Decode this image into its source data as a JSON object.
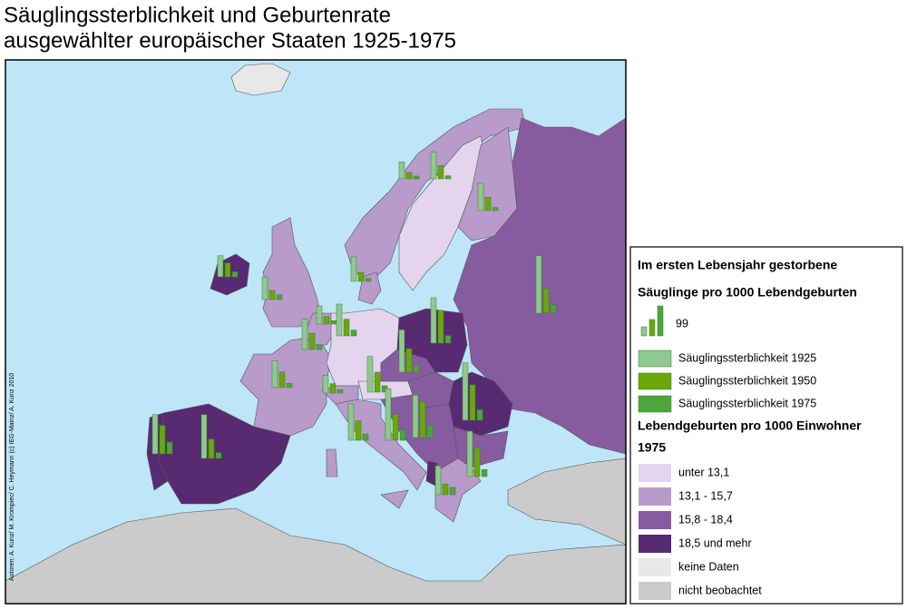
{
  "title_lines": [
    "Säuglingssterblichkeit und Geburtenrate",
    "ausgewählter europäischer Staaten 1925-1975"
  ],
  "credit": "Autoren: A. Kunz/ M. Krompiec/ C. Heymann (c) IEG-Mainz/ A. Kunz 2010",
  "legend": {
    "heading_1": "Im ersten Lebensjahr gestorbene",
    "heading_2": "Säuglinge pro 1000  Lebendgeburten",
    "heading_3": "Lebendgeburten pro 1000 Einwohner",
    "heading_4": "1975",
    "classes": [
      {
        "label": " unter 13,1",
        "color": "#e4d4ee"
      },
      {
        "label": "13,1 - 15,7",
        "color": "#b89bcb"
      },
      {
        "label": "15,8 - 18,4",
        "color": "#875ba0"
      },
      {
        "label": "18,5 und mehr",
        "color": "#582a72"
      },
      {
        "label": "keine Daten",
        "color": "#e8e8e8"
      },
      {
        "label": "nicht beobachtet",
        "color": "#cbcbcb"
      }
    ]
  },
  "chart_data": {
    "type": "bar",
    "scale_value": 99,
    "series": [
      {
        "name": "Säuglingssterblichkeit 1925",
        "color": "#8fc98f",
        "values": [
          70,
          75,
          81,
          56,
          88,
          90,
          190,
          60,
          100,
          105,
          89,
          58,
          118,
          140,
          150,
          170,
          190,
          140,
          120,
          150,
          95,
          130,
          145
        ]
      },
      {
        "name": "Säuglingssterblichkeit 1950",
        "color": "#6aa80a",
        "values": [
          46,
          30,
          30,
          21,
          44,
          44,
          81,
          25,
          53,
          55,
          52,
          31,
          66,
          78,
          108,
          86,
          117,
          118,
          64,
          94,
          35,
          94,
          64
        ]
      },
      {
        "name": "Säuglingssterblichkeit 1975",
        "color": "#4ca63c",
        "values": [
          17,
          16,
          10,
          9,
          10,
          10,
          28,
          11,
          16,
          19,
          14,
          11,
          21,
          21,
          25,
          33,
          35,
          40,
          21,
          23,
          24,
          39,
          19
        ]
      }
    ]
  }
}
